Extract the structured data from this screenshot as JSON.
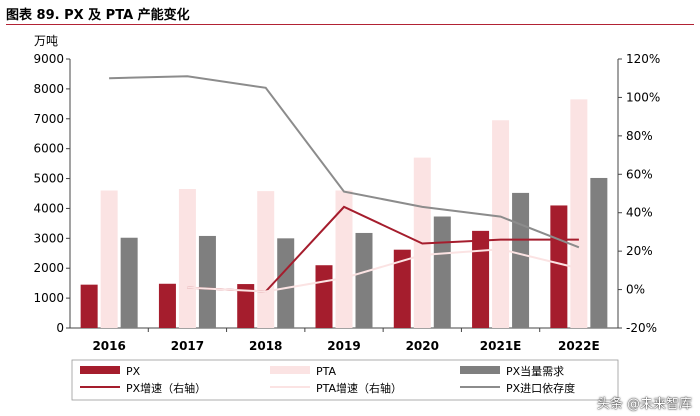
{
  "title": "图表 89. PX 及 PTA 产能变化",
  "watermark": "头条 @未来智库",
  "colors": {
    "px": "#a51d2d",
    "pta": "#fbe3e3",
    "px_demand": "#7f7f7f",
    "px_growth": "#a51d2d",
    "pta_growth": "#fbe3e3",
    "px_import": "#8c8c8c",
    "axis": "#444444"
  },
  "chart_data": {
    "type": "bar",
    "title": "图表 89. PX 及 PTA 产能变化",
    "y_unit_label": "万吨",
    "categories": [
      "2016",
      "2017",
      "2018",
      "2019",
      "2020",
      "2021E",
      "2022E"
    ],
    "ylim": [
      0,
      9000
    ],
    "y_ticks": [
      "0",
      "1000",
      "2000",
      "3000",
      "4000",
      "5000",
      "6000",
      "7000",
      "8000",
      "9000"
    ],
    "y2lim": [
      -20,
      120
    ],
    "y2_ticks": [
      "-20%",
      "0%",
      "20%",
      "40%",
      "60%",
      "80%",
      "100%",
      "120%"
    ],
    "series": [
      {
        "name": "PX",
        "kind": "bar",
        "axis": "left",
        "color": "#a51d2d",
        "values": [
          1450,
          1480,
          1470,
          2100,
          2620,
          3250,
          4100
        ]
      },
      {
        "name": "PTA",
        "kind": "bar",
        "axis": "left",
        "color": "#fbe3e3",
        "values": [
          4600,
          4650,
          4580,
          4600,
          5700,
          6950,
          7650
        ]
      },
      {
        "name": "PX当量需求",
        "kind": "bar",
        "axis": "left",
        "color": "#7f7f7f",
        "values": [
          3020,
          3080,
          3000,
          3180,
          3730,
          4520,
          5020
        ]
      },
      {
        "name": "PX增速（右轴）",
        "kind": "line",
        "axis": "right",
        "color": "#a51d2d",
        "values": [
          null,
          1,
          -1,
          43,
          24,
          26,
          26
        ]
      },
      {
        "name": "PTA增速（右轴）",
        "kind": "line",
        "axis": "right",
        "color": "#fbe3e3",
        "values": [
          null,
          1,
          -1,
          6,
          18,
          21,
          11
        ]
      },
      {
        "name": "PX进口依存度",
        "kind": "line",
        "axis": "right",
        "color": "#8c8c8c",
        "values": [
          110,
          111,
          105,
          51,
          43,
          38,
          22
        ]
      }
    ],
    "legend": [
      {
        "label": "PX",
        "kind": "bar",
        "color": "#a51d2d"
      },
      {
        "label": "PTA",
        "kind": "bar",
        "color": "#fbe3e3"
      },
      {
        "label": "PX当量需求",
        "kind": "bar",
        "color": "#7f7f7f"
      },
      {
        "label": "PX增速（右轴）",
        "kind": "line",
        "color": "#a51d2d"
      },
      {
        "label": "PTA增速（右轴）",
        "kind": "line",
        "color": "#fbe3e3"
      },
      {
        "label": "PX进口依存度",
        "kind": "line",
        "color": "#8c8c8c"
      }
    ],
    "legend_position": "bottom",
    "grid": false
  }
}
